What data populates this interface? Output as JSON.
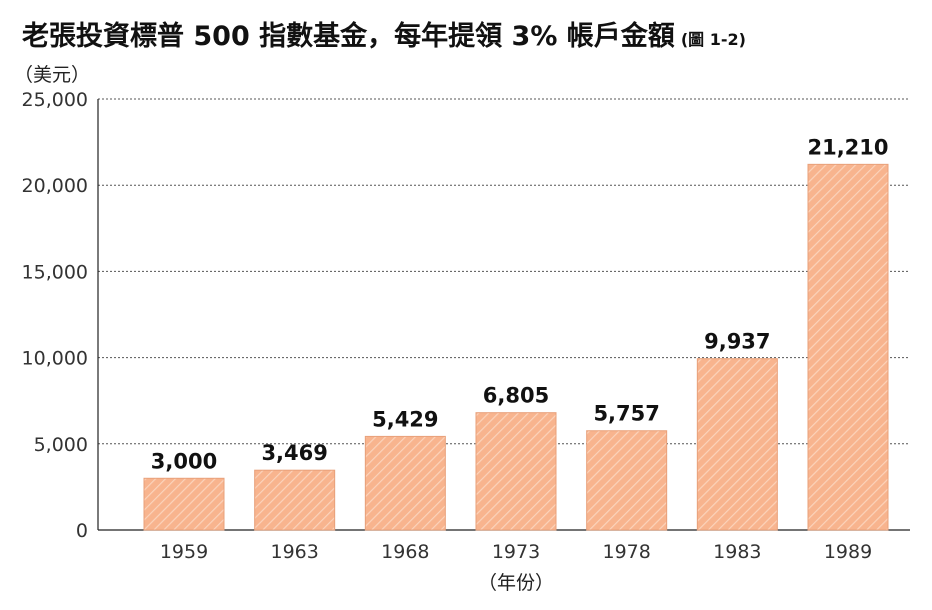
{
  "header": {
    "title": "老張投資標普 500 指數基金，每年提領 3% 帳戶金額",
    "figure_no": "(圖 1-2)"
  },
  "chart_data": {
    "type": "bar",
    "ylabel": "（美元）",
    "xlabel": "（年份）",
    "categories": [
      "1959",
      "1963",
      "1968",
      "1973",
      "1978",
      "1983",
      "1989"
    ],
    "values": [
      3000,
      3469,
      5429,
      6805,
      5757,
      9937,
      21210
    ],
    "value_labels": [
      "3,000",
      "3,469",
      "5,429",
      "6,805",
      "5,757",
      "9,937",
      "21,210"
    ],
    "ylim": [
      0,
      25000
    ],
    "yticks": [
      0,
      5000,
      10000,
      15000,
      20000,
      25000
    ],
    "ytick_labels": [
      "0",
      "5,000",
      "10,000",
      "15,000",
      "20,000",
      "25,000"
    ],
    "grid": true,
    "colors": {
      "bar_fill": "#f8b48e",
      "bar_hatch": "#fbd3bb",
      "bar_stroke": "#e8a07a",
      "grid": "#555555",
      "axis": "#222222"
    }
  }
}
